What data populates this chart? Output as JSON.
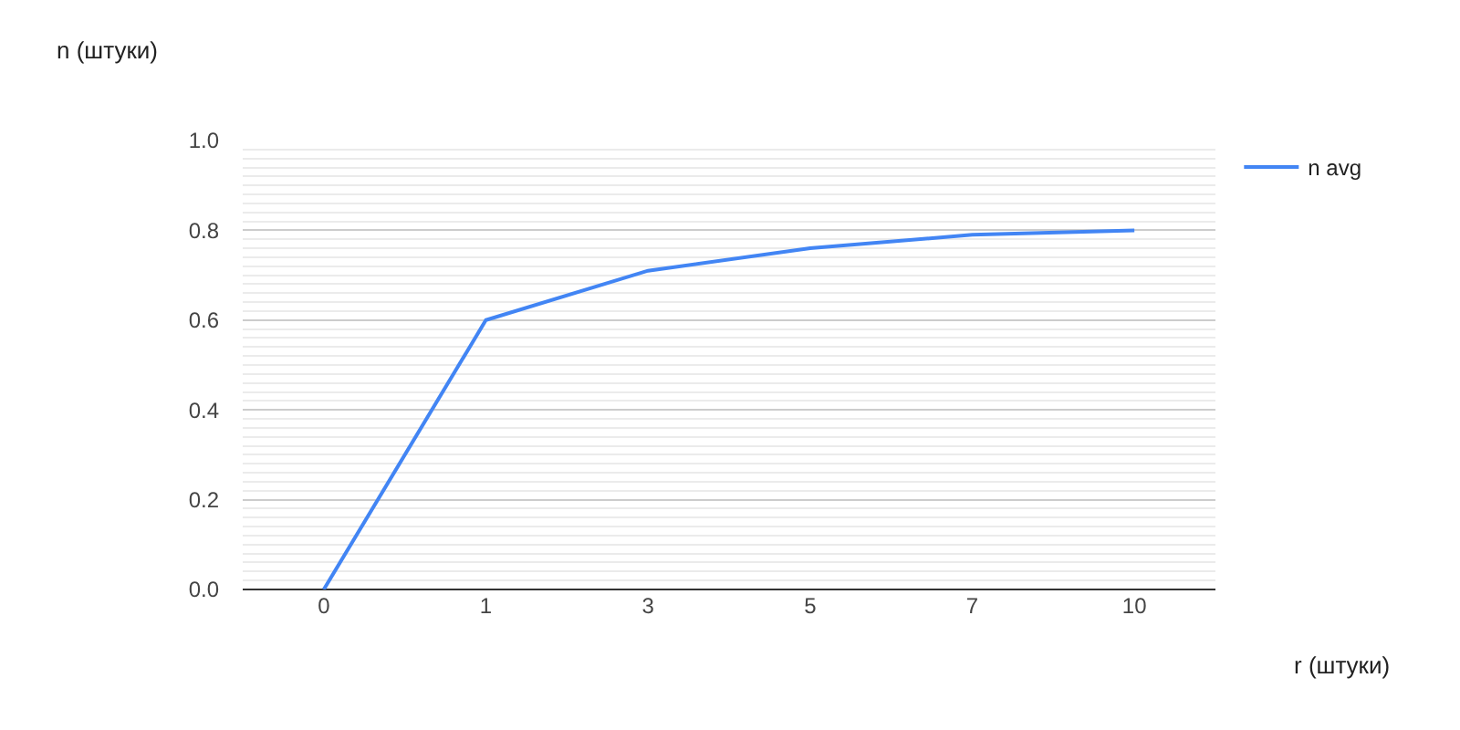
{
  "chart_data": {
    "type": "line",
    "xlabel": "r (штуки)",
    "ylabel": "n (штуки)",
    "categories": [
      "0",
      "1",
      "3",
      "5",
      "7",
      "10"
    ],
    "series": [
      {
        "name": "n avg",
        "color": "#4285f4",
        "values": [
          0,
          0.6,
          0.71,
          0.76,
          0.79,
          0.8
        ]
      }
    ],
    "ylim": [
      0,
      1
    ],
    "yticks": [
      {
        "value": 0,
        "label": "0.0"
      },
      {
        "value": 0.2,
        "label": "0.2"
      },
      {
        "value": 0.4,
        "label": "0.4"
      },
      {
        "value": 0.6,
        "label": "0.6"
      },
      {
        "value": 0.8,
        "label": "0.8"
      },
      {
        "value": 1,
        "label": "1.0"
      }
    ],
    "grid": "y",
    "legend": "top right",
    "marker": "none",
    "line_style": "solid"
  }
}
